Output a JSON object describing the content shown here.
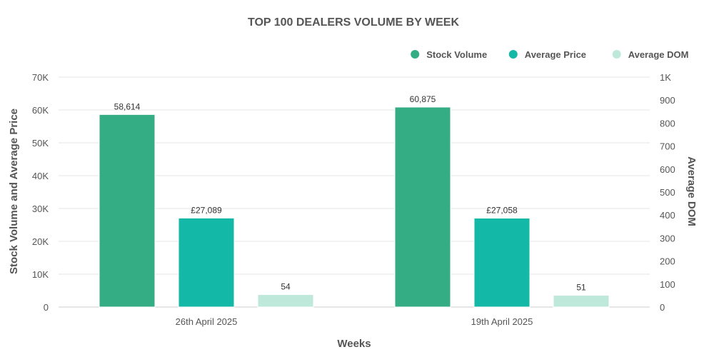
{
  "chart_data": {
    "type": "bar",
    "title": "TOP 100 DEALERS VOLUME BY WEEK",
    "xlabel": "Weeks",
    "ylabel": "Stock Volume and Average Price",
    "y2label": "Average DOM",
    "categories": [
      "26th April 2025",
      "19th April 2025"
    ],
    "series": [
      {
        "name": "Stock Volume",
        "axis": "left",
        "color": "#34ad84",
        "values": [
          58614,
          60875
        ],
        "labels": [
          "58,614",
          "60,875"
        ]
      },
      {
        "name": "Average Price",
        "axis": "left",
        "color": "#14b8a6",
        "values": [
          27089,
          27058
        ],
        "labels": [
          "£27,089",
          "£27,058"
        ]
      },
      {
        "name": "Average DOM",
        "axis": "right",
        "color": "#bde8da",
        "values": [
          54,
          51
        ],
        "labels": [
          "54",
          "51"
        ]
      }
    ],
    "ylim": [
      0,
      70000
    ],
    "y_ticks": [
      "0",
      "10K",
      "20K",
      "30K",
      "40K",
      "50K",
      "60K",
      "70K"
    ],
    "y2lim": [
      0,
      1000
    ],
    "y2_ticks": [
      "0",
      "100",
      "200",
      "300",
      "400",
      "500",
      "600",
      "700",
      "800",
      "900",
      "1K"
    ],
    "legend_position": "top-right",
    "grid": true
  }
}
